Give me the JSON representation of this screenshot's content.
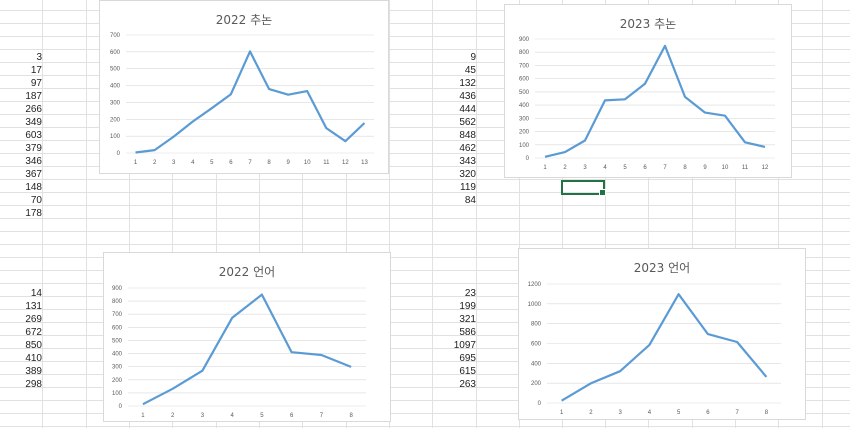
{
  "data_columns": [
    {
      "id": "a",
      "values": [
        "3",
        "17",
        "97",
        "187",
        "266",
        "349",
        "603",
        "379",
        "346",
        "367",
        "148",
        "70",
        "178"
      ]
    },
    {
      "id": "b",
      "values": [
        "9",
        "45",
        "132",
        "436",
        "444",
        "562",
        "848",
        "462",
        "343",
        "320",
        "119",
        "84"
      ]
    },
    {
      "id": "c",
      "values": [
        "14",
        "131",
        "269",
        "672",
        "850",
        "410",
        "389",
        "298"
      ]
    },
    {
      "id": "d",
      "values": [
        "23",
        "199",
        "321",
        "586",
        "1097",
        "695",
        "615",
        "263"
      ]
    }
  ],
  "colors": {
    "line": "#5b9bd5",
    "grid": "#d9d9d9",
    "selection": "#217346"
  },
  "chart_data": [
    {
      "type": "line",
      "title": "2022 추논",
      "categories": [
        "1",
        "2",
        "3",
        "4",
        "5",
        "6",
        "7",
        "8",
        "9",
        "10",
        "11",
        "12",
        "13"
      ],
      "series": [
        {
          "values": [
            3,
            17,
            97,
            187,
            266,
            349,
            603,
            379,
            346,
            367,
            148,
            70,
            178
          ]
        }
      ],
      "ylim": [
        0,
        700
      ],
      "yticks": [
        "0",
        "100",
        "200",
        "300",
        "400",
        "500",
        "600",
        "700"
      ],
      "grid": true
    },
    {
      "type": "line",
      "title": "2023 추논",
      "categories": [
        "1",
        "2",
        "3",
        "4",
        "5",
        "6",
        "7",
        "8",
        "9",
        "10",
        "11",
        "12"
      ],
      "series": [
        {
          "values": [
            9,
            45,
            132,
            436,
            444,
            562,
            848,
            462,
            343,
            320,
            119,
            84
          ]
        }
      ],
      "ylim": [
        0,
        900
      ],
      "yticks": [
        "0",
        "100",
        "200",
        "300",
        "400",
        "500",
        "600",
        "700",
        "800",
        "900"
      ],
      "grid": true
    },
    {
      "type": "line",
      "title": "2022 언어",
      "categories": [
        "1",
        "2",
        "3",
        "4",
        "5",
        "6",
        "7",
        "8"
      ],
      "series": [
        {
          "values": [
            14,
            131,
            269,
            672,
            850,
            410,
            389,
            298
          ]
        }
      ],
      "ylim": [
        0,
        900
      ],
      "yticks": [
        "0",
        "100",
        "200",
        "300",
        "400",
        "500",
        "600",
        "700",
        "800",
        "900"
      ],
      "grid": true
    },
    {
      "type": "line",
      "title": "2023 언어",
      "categories": [
        "1",
        "2",
        "3",
        "4",
        "5",
        "6",
        "7",
        "8"
      ],
      "series": [
        {
          "values": [
            23,
            199,
            321,
            586,
            1097,
            695,
            615,
            263
          ]
        }
      ],
      "ylim": [
        0,
        1200
      ],
      "yticks": [
        "0",
        "200",
        "400",
        "600",
        "800",
        "1000",
        "1200"
      ],
      "grid": true
    }
  ]
}
